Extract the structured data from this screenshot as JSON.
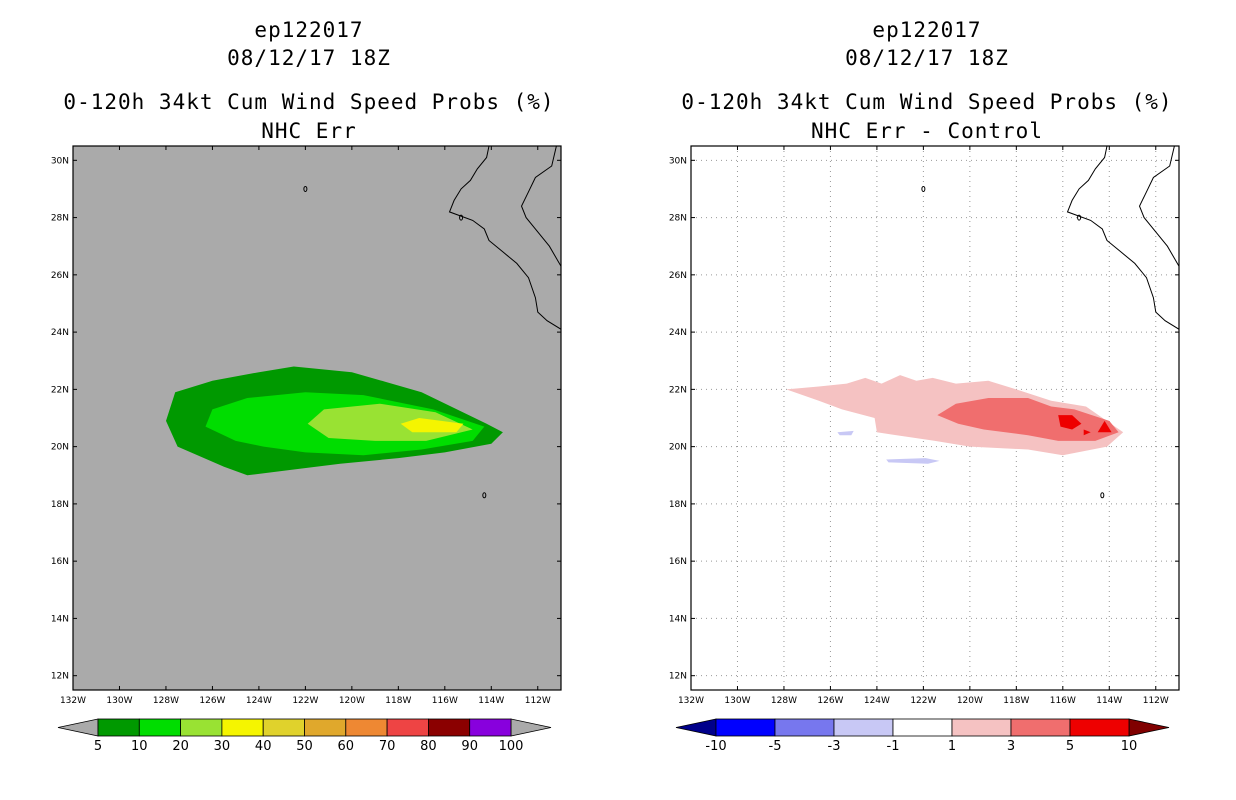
{
  "panels": [
    {
      "id": "left",
      "storm": "ep122017",
      "datetime": "08/12/17 18Z",
      "title": "0-120h 34kt Cum Wind Speed Probs (%)",
      "subtitle": "NHC Err",
      "background": "#aaaaaa",
      "colorbar": {
        "colors": [
          "#009900",
          "#00dd00",
          "#99e233",
          "#f5f500",
          "#e0d22c",
          "#e0a82c",
          "#ee8833",
          "#ee4444",
          "#8b0000",
          "#8800dd"
        ],
        "under_color": "#aaaaaa",
        "over_color": "#aaaaaa",
        "labels": [
          "5",
          "10",
          "20",
          "30",
          "40",
          "50",
          "60",
          "70",
          "80",
          "90",
          "100"
        ]
      }
    },
    {
      "id": "right",
      "storm": "ep122017",
      "datetime": "08/12/17 18Z",
      "title": "0-120h 34kt Cum Wind Speed Probs (%)",
      "subtitle": "NHC Err - Control",
      "background": "#ffffff",
      "colorbar": {
        "colors": [
          "#0000ff",
          "#7777ee",
          "#c8c8f5",
          "#ffffff",
          "#f5c2c2",
          "#f06e6e",
          "#ee0000"
        ],
        "under_color": "#00008b",
        "over_color": "#800000",
        "labels": [
          "-10",
          "-5",
          "-3",
          "-1",
          "1",
          "3",
          "5",
          "10"
        ]
      }
    }
  ],
  "chart_data": [
    {
      "type": "heatmap",
      "title": "0-120h 34kt Cum Wind Speed Probs (%)",
      "subtitle": "NHC Err",
      "xlim": [
        -132,
        -111
      ],
      "ylim": [
        11.5,
        30.5
      ],
      "x_ticks": [
        "132W",
        "130W",
        "128W",
        "126W",
        "124W",
        "122W",
        "120W",
        "118W",
        "116W",
        "114W",
        "112W"
      ],
      "y_ticks": [
        "12N",
        "14N",
        "16N",
        "18N",
        "20N",
        "22N",
        "24N",
        "26N",
        "28N",
        "30N"
      ],
      "contour_levels": [
        5,
        10,
        20,
        30,
        40,
        50,
        60,
        70,
        80,
        90,
        100
      ],
      "contours": [
        {
          "level": 5,
          "color": "#009900",
          "points": [
            [
              -128.0,
              20.9
            ],
            [
              -127.6,
              21.9
            ],
            [
              -126.0,
              22.3
            ],
            [
              -124.0,
              22.6
            ],
            [
              -122.5,
              22.8
            ],
            [
              -120.0,
              22.6
            ],
            [
              -117.0,
              21.9
            ],
            [
              -114.2,
              20.8
            ],
            [
              -113.5,
              20.5
            ],
            [
              -114.0,
              20.1
            ],
            [
              -116.0,
              19.8
            ],
            [
              -118.0,
              19.6
            ],
            [
              -120.5,
              19.4
            ],
            [
              -122.5,
              19.2
            ],
            [
              -124.5,
              19.0
            ],
            [
              -125.5,
              19.3
            ],
            [
              -127.5,
              20.0
            ]
          ]
        },
        {
          "level": 10,
          "color": "#00dd00",
          "points": [
            [
              -126.3,
              20.7
            ],
            [
              -126.0,
              21.3
            ],
            [
              -124.5,
              21.7
            ],
            [
              -122.0,
              21.9
            ],
            [
              -119.5,
              21.8
            ],
            [
              -116.5,
              21.3
            ],
            [
              -114.3,
              20.7
            ],
            [
              -114.8,
              20.2
            ],
            [
              -117.0,
              19.9
            ],
            [
              -119.5,
              19.7
            ],
            [
              -122.0,
              19.8
            ],
            [
              -123.8,
              20.0
            ],
            [
              -125.0,
              20.2
            ]
          ]
        },
        {
          "level": 20,
          "color": "#99e233",
          "points": [
            [
              -121.9,
              20.8
            ],
            [
              -121.2,
              21.3
            ],
            [
              -118.8,
              21.5
            ],
            [
              -116.4,
              21.2
            ],
            [
              -114.8,
              20.6
            ],
            [
              -116.8,
              20.2
            ],
            [
              -119.0,
              20.2
            ],
            [
              -121.0,
              20.3
            ]
          ]
        },
        {
          "level": 30,
          "color": "#f5f500",
          "points": [
            [
              -117.9,
              20.8
            ],
            [
              -117.1,
              21.0
            ],
            [
              -115.2,
              20.8
            ],
            [
              -115.5,
              20.5
            ],
            [
              -117.4,
              20.5
            ]
          ]
        }
      ]
    },
    {
      "type": "heatmap",
      "title": "0-120h 34kt Cum Wind Speed Probs (%)",
      "subtitle": "NHC Err - Control",
      "xlim": [
        -132,
        -111
      ],
      "ylim": [
        11.5,
        30.5
      ],
      "x_ticks": [
        "132W",
        "130W",
        "128W",
        "126W",
        "124W",
        "122W",
        "120W",
        "118W",
        "116W",
        "114W",
        "112W"
      ],
      "y_ticks": [
        "12N",
        "14N",
        "16N",
        "18N",
        "20N",
        "22N",
        "24N",
        "26N",
        "28N",
        "30N"
      ],
      "grid": true,
      "contour_levels": [
        -10,
        -5,
        -3,
        -1,
        1,
        3,
        5,
        10
      ],
      "contours": [
        {
          "level": 1,
          "color": "#f5c2c2",
          "points": [
            [
              -127.9,
              22.0
            ],
            [
              -126.5,
              22.1
            ],
            [
              -125.3,
              22.2
            ],
            [
              -124.5,
              22.4
            ],
            [
              -123.8,
              22.2
            ],
            [
              -123.0,
              22.5
            ],
            [
              -122.3,
              22.3
            ],
            [
              -121.6,
              22.4
            ],
            [
              -120.6,
              22.2
            ],
            [
              -119.2,
              22.3
            ],
            [
              -118.0,
              22.0
            ],
            [
              -116.5,
              21.6
            ],
            [
              -115.0,
              21.4
            ],
            [
              -113.4,
              20.5
            ],
            [
              -114.1,
              20.0
            ],
            [
              -116.0,
              19.7
            ],
            [
              -117.5,
              19.9
            ],
            [
              -120.0,
              20.0
            ],
            [
              -121.5,
              20.2
            ],
            [
              -124.0,
              20.5
            ],
            [
              -124.1,
              21.0
            ],
            [
              -125.5,
              21.3
            ],
            [
              -126.5,
              21.6
            ]
          ]
        },
        {
          "level": 3,
          "color": "#f06e6e",
          "points": [
            [
              -121.4,
              21.1
            ],
            [
              -120.6,
              21.5
            ],
            [
              -119.2,
              21.7
            ],
            [
              -117.5,
              21.7
            ],
            [
              -116.5,
              21.4
            ],
            [
              -115.5,
              21.3
            ],
            [
              -114.0,
              20.9
            ],
            [
              -113.6,
              20.5
            ],
            [
              -114.6,
              20.2
            ],
            [
              -116.2,
              20.2
            ],
            [
              -117.5,
              20.4
            ],
            [
              -119.4,
              20.6
            ],
            [
              -120.5,
              20.8
            ]
          ]
        },
        {
          "level": 5,
          "color": "#ee0000",
          "points": [
            [
              -116.2,
              21.1
            ],
            [
              -115.6,
              21.1
            ],
            [
              -115.2,
              20.8
            ],
            [
              -115.6,
              20.6
            ],
            [
              -116.1,
              20.7
            ]
          ]
        },
        {
          "level": 5,
          "color": "#ee0000",
          "points": [
            [
              -114.2,
              20.9
            ],
            [
              -113.9,
              20.5
            ],
            [
              -114.5,
              20.5
            ]
          ]
        },
        {
          "level": 5,
          "color": "#ee0000",
          "points": [
            [
              -115.1,
              20.6
            ],
            [
              -114.8,
              20.5
            ],
            [
              -115.1,
              20.4
            ]
          ]
        },
        {
          "level": -1,
          "color": "#c8c8f5",
          "points": [
            [
              -125.7,
              20.5
            ],
            [
              -125.0,
              20.55
            ],
            [
              -125.1,
              20.4
            ],
            [
              -125.6,
              20.4
            ]
          ]
        },
        {
          "level": -1,
          "color": "#c8c8f5",
          "points": [
            [
              -123.6,
              19.55
            ],
            [
              -121.9,
              19.6
            ],
            [
              -121.3,
              19.5
            ],
            [
              -121.8,
              19.4
            ],
            [
              -123.5,
              19.45
            ]
          ]
        }
      ]
    }
  ]
}
